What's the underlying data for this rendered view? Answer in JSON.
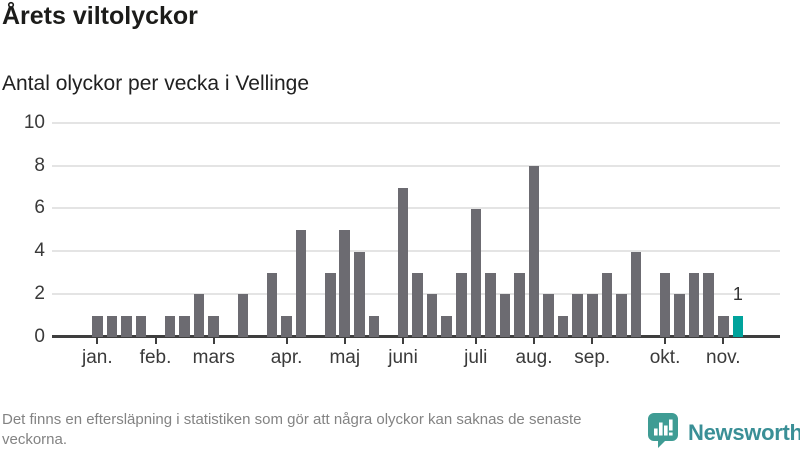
{
  "header": {
    "title": "Årets viltolyckor",
    "subtitle": "Antal olyckor per vecka i Vellinge"
  },
  "chart_data": {
    "type": "bar",
    "title": "Årets viltolyckor",
    "subtitle": "Antal olyckor per vecka i Vellinge",
    "x_unit": "vecka",
    "values": [
      1,
      1,
      1,
      1,
      0,
      1,
      1,
      2,
      1,
      0,
      2,
      0,
      3,
      1,
      5,
      0,
      3,
      5,
      4,
      1,
      0,
      7,
      3,
      2,
      1,
      3,
      6,
      3,
      2,
      3,
      8,
      2,
      1,
      2,
      2,
      3,
      2,
      4,
      0,
      3,
      2,
      3,
      3,
      1,
      1
    ],
    "month_ticks": [
      {
        "week": 0,
        "label": "jan."
      },
      {
        "week": 4,
        "label": "feb."
      },
      {
        "week": 8,
        "label": "mars"
      },
      {
        "week": 13,
        "label": "apr."
      },
      {
        "week": 17,
        "label": "maj"
      },
      {
        "week": 21,
        "label": "juni"
      },
      {
        "week": 26,
        "label": "juli"
      },
      {
        "week": 30,
        "label": "aug."
      },
      {
        "week": 34,
        "label": "sep."
      },
      {
        "week": 39,
        "label": "okt."
      },
      {
        "week": 43,
        "label": "nov."
      }
    ],
    "y_ticks": [
      0,
      2,
      4,
      6,
      8,
      10
    ],
    "ylim": [
      0,
      10
    ],
    "grid": true,
    "highlight_last": true,
    "last_value_label": "1",
    "bar_color": "#6c6b71",
    "highlight_color": "#00a39c",
    "grid_color": "#e4e4e4",
    "axis_color": "#3e3e3e"
  },
  "footer": {
    "note": "Det finns en eftersläpning i statistiken som gör att några olyckor kan saknas de senaste veckorna.",
    "brand": "Newsworthy",
    "brand_color": "#3a8f96",
    "logo_color": "#3f9c94"
  }
}
